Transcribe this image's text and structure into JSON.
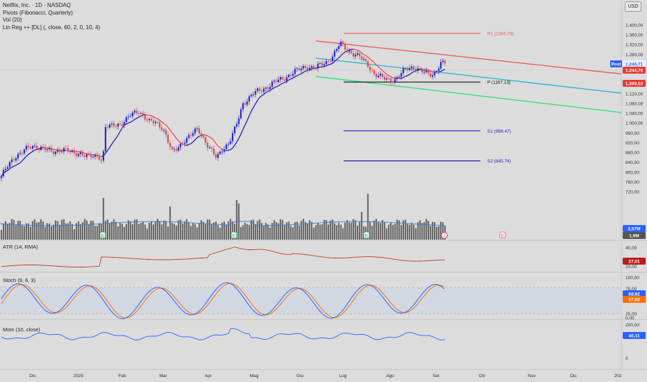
{
  "header": {
    "symbol_line": "Netflix, Inc. · 1D · NASDAQ",
    "indicator_1": "Pivots (Fibonacci, Quarterly)",
    "indicator_2": "Vol (20)",
    "indicator_3": "Lin Reg ++ [DL] (, close, 60, 2, 0, 10, 4)"
  },
  "currency": "USD",
  "panes": {
    "atr_label": "ATR (14, RMA)",
    "stoch_label": "Stoch (9, 6, 3)",
    "mom_label": "Mom (10, close)"
  },
  "x_axis_labels": [
    "Dic",
    "2025",
    "Feb",
    "Mar",
    "Apr",
    "Mag",
    "Giu",
    "Lug",
    "Ago",
    "Set",
    "Ott",
    "Nov",
    "Dic",
    "202"
  ],
  "price_axis_ticks": [
    "1.400,00",
    "1.360,00",
    "1.320,00",
    "1.280,00",
    "1.240,00",
    "1.160,00",
    "1.120,00",
    "1.080,00",
    "1.040,00",
    "1.000,00",
    "960,00",
    "920,00",
    "880,00",
    "840,00",
    "800,00",
    "760,00",
    "720,00"
  ],
  "atr_axis_ticks": [
    "40,00",
    "20,00"
  ],
  "stoch_axis_ticks": [
    "100,00",
    "75,00",
    "25,00",
    "0,00"
  ],
  "mom_axis_ticks": [
    "200,00",
    "0"
  ],
  "badges": {
    "post_label": "Post",
    "post_value": "1.246,71",
    "last_price": "1.244,76",
    "regression_value": "1.200,53",
    "volume_ma": "2,57M",
    "volume_last": "1,9M",
    "atr_value": "27,01",
    "stoch_k": "68,92",
    "stoch_d": "67,02",
    "mom_value": "40,11"
  },
  "pivots": {
    "r1": "R1 (1365.79)",
    "p": "P (1167.13)",
    "s1": "S1 (968.47)",
    "s2": "S2 (845.74)"
  },
  "event_markers": {
    "earnings": "E",
    "split": "⚡"
  },
  "colors": {
    "bull": "#2929cc",
    "bear": "#e04b4b",
    "ma_up": "#1f1fb0",
    "ma_down": "#e94f4f",
    "regression_upper": "#f05a5a",
    "regression_mid": "#29b6d6",
    "regression_lower": "#2ee07a",
    "pivot_r": "#f05a5a",
    "pivot_p": "#111111",
    "pivot_s": "#1f1fb8",
    "volume": "#6b6b6b",
    "atr": "#c0392b",
    "stoch_k": "#2962ff",
    "stoch_d": "#ff6d00",
    "mom": "#2962ff"
  },
  "chart_data": {
    "type": "candlestick",
    "symbol": "NFLX",
    "timeframe": "1D",
    "y_range": [
      700,
      1420
    ],
    "x": [
      "2024-11-25",
      "2024-12-02",
      "2024-12-09",
      "2024-12-16",
      "2024-12-23",
      "2024-12-30",
      "2025-01-06",
      "2025-01-13",
      "2025-01-21",
      "2025-01-27",
      "2025-02-03",
      "2025-02-10",
      "2025-02-18",
      "2025-02-24",
      "2025-03-03",
      "2025-03-10",
      "2025-03-17",
      "2025-03-24",
      "2025-03-31",
      "2025-04-07",
      "2025-04-14",
      "2025-04-21",
      "2025-04-28",
      "2025-05-05",
      "2025-05-12",
      "2025-05-19",
      "2025-05-27",
      "2025-06-02",
      "2025-06-09",
      "2025-06-16",
      "2025-06-23",
      "2025-06-30",
      "2025-07-07",
      "2025-07-14",
      "2025-07-21",
      "2025-07-28",
      "2025-08-04",
      "2025-08-11",
      "2025-08-18",
      "2025-08-25",
      "2025-09-02"
    ],
    "close": [
      780,
      850,
      900,
      910,
      905,
      895,
      870,
      860,
      985,
      985,
      1000,
      1010,
      1040,
      990,
      900,
      900,
      950,
      980,
      930,
      880,
      985,
      995,
      1120,
      1140,
      1175,
      1190,
      1205,
      1230,
      1245,
      1225,
      1280,
      1290,
      1260,
      1230,
      1180,
      1160,
      1200,
      1220,
      1210,
      1205,
      1244.76
    ],
    "volume_ma": "2,57M",
    "volume_last": "1,9M",
    "atr_last": 27.01,
    "stoch_k_last": 68.92,
    "stoch_d_last": 67.02,
    "mom_last": 40.11,
    "pivots": {
      "R1": 1365.79,
      "P": 1167.13,
      "S1": 968.47,
      "S2": 845.74
    }
  }
}
